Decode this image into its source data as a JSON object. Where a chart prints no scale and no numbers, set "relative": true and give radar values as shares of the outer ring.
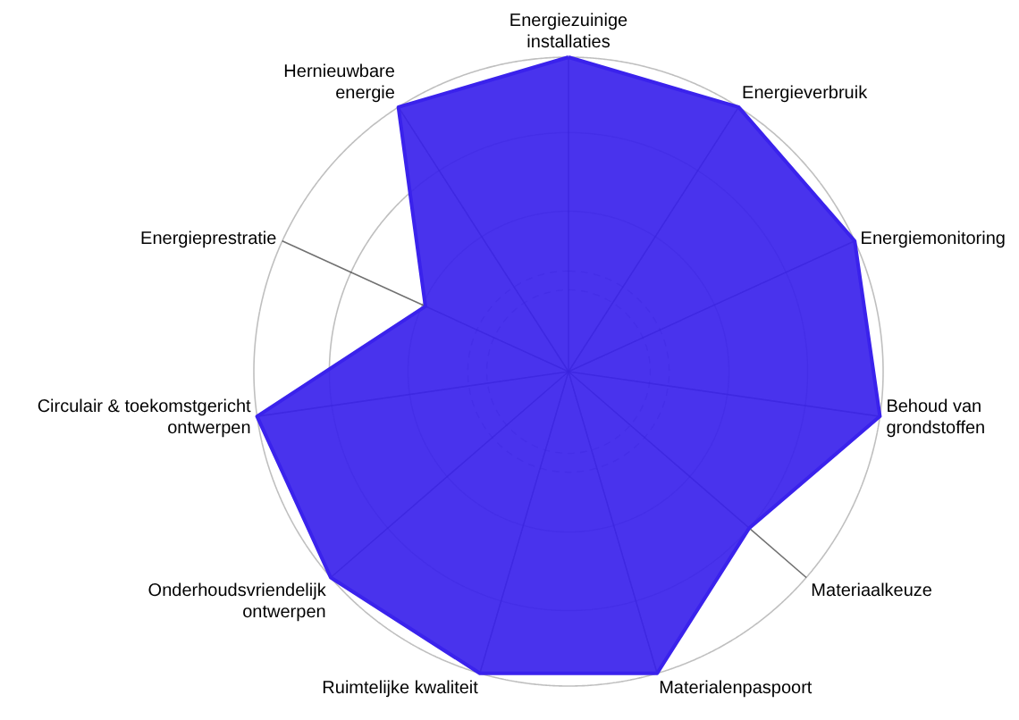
{
  "chart_data": {
    "type": "radar",
    "relative": true,
    "grid": true,
    "categories": [
      "Energiezuinige\ninstallaties",
      "Energieverbruik",
      "Energiemonitoring",
      "Behoud van\ngrondstoffen",
      "Materiaalkeuze",
      "Materialenpaspoort",
      "Ruimtelijke kwaliteit",
      "Onderhoudsvriendelijk\nontwerpen",
      "Circulair & toekomstgericht\nontwerpen",
      "Energieprestratie",
      "Hernieuwbare\nenergie"
    ],
    "series": [
      {
        "color": "#3a22ec",
        "values": [
          1,
          1,
          1,
          1,
          0.76,
          1,
          1,
          1,
          1,
          0.5,
          1
        ]
      }
    ]
  }
}
